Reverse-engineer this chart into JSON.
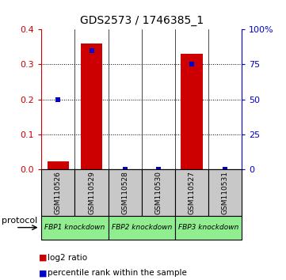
{
  "title": "GDS2573 / 1746385_1",
  "samples": [
    "GSM110526",
    "GSM110529",
    "GSM110528",
    "GSM110530",
    "GSM110527",
    "GSM110531"
  ],
  "log2_ratio": [
    0.022,
    0.36,
    0.0,
    0.0,
    0.33,
    0.0
  ],
  "percentile_rank": [
    50.0,
    85.0,
    0.0,
    0.0,
    75.0,
    0.0
  ],
  "left_ylim": [
    0,
    0.4
  ],
  "right_ylim": [
    0,
    100
  ],
  "left_yticks": [
    0,
    0.1,
    0.2,
    0.3,
    0.4
  ],
  "right_yticks": [
    0,
    25,
    50,
    75,
    100
  ],
  "right_yticklabels": [
    "0",
    "25",
    "50",
    "75",
    "100%"
  ],
  "groups": [
    {
      "label": "FBP1 knockdown",
      "start": 0,
      "end": 2,
      "color": "#90EE90"
    },
    {
      "label": "FBP2 knockdown",
      "start": 2,
      "end": 4,
      "color": "#90EE90"
    },
    {
      "label": "FBP3 knockdown",
      "start": 4,
      "end": 6,
      "color": "#90EE90"
    }
  ],
  "bar_color": "#CC0000",
  "scatter_color": "#0000CC",
  "bar_width": 0.65,
  "scatter_size": 18,
  "sample_box_color": "#C8C8C8",
  "protocol_label": "protocol",
  "legend_log2": "log2 ratio",
  "legend_pct": "percentile rank within the sample",
  "left_axis_color": "#CC0000",
  "right_axis_color": "#0000CC"
}
